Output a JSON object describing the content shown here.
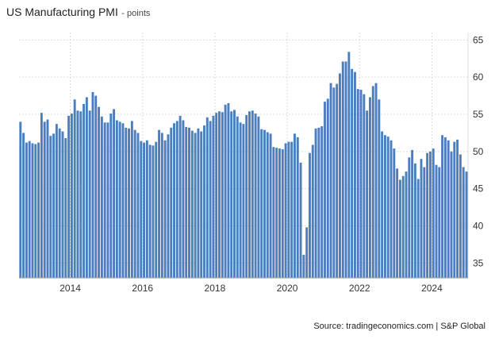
{
  "header": {
    "title": "US Manufacturing PMI",
    "unit": "- points"
  },
  "footer": {
    "source": "Source: tradingeconomics.com | S&P Global"
  },
  "colors": {
    "bar": "#4a7ebf",
    "grid": "#dcdcdc",
    "axis": "#999999"
  },
  "chart_data": {
    "type": "bar",
    "title": "US Manufacturing PMI",
    "subtitle": "- points",
    "xlabel": "",
    "ylabel": "",
    "ylim": [
      33,
      66
    ],
    "yticks": [
      35,
      40,
      45,
      50,
      55,
      60,
      65
    ],
    "x_tick_labels": [
      "2014",
      "2016",
      "2018",
      "2020",
      "2022",
      "2024"
    ],
    "x_ticks_month_index": [
      17,
      41,
      65,
      89,
      113,
      137
    ],
    "start": "2012-07",
    "end": "2024-09",
    "grid": true,
    "y_axis_side": "right",
    "values": [
      54,
      52.5,
      51.2,
      51.4,
      51.1,
      51,
      51.2,
      55.2,
      54,
      54.3,
      52.1,
      52.4,
      53.7,
      53.1,
      52.7,
      51.8,
      54.8,
      55.1,
      57,
      55.5,
      55.4,
      56.4,
      57.3,
      55.5,
      58,
      57.5,
      56,
      54.7,
      53.9,
      53.9,
      55.1,
      55.7,
      54.2,
      54,
      53.8,
      53.2,
      53.1,
      54.1,
      52.9,
      52.5,
      51.4,
      51.2,
      51.5,
      50.9,
      50.8,
      51.3,
      52.9,
      52.5,
      51.5,
      52.3,
      53.2,
      53.8,
      54.1,
      54.8,
      54.2,
      53.3,
      53.2,
      52.8,
      52.5,
      53.1,
      52.7,
      53.5,
      54.6,
      54.1,
      54.8,
      55.2,
      55.4,
      55.3,
      56.3,
      56.5,
      55.4,
      55.6,
      54.7,
      53.9,
      53.7,
      54.9,
      55.4,
      55.5,
      55.1,
      54.7,
      53,
      52.9,
      52.6,
      52.4,
      50.6,
      50.5,
      50.4,
      50.3,
      51.1,
      51.3,
      51.3,
      52.4,
      51.9,
      48.5,
      36.1,
      39.8,
      49.8,
      50.9,
      53.1,
      53.2,
      53.4,
      56.7,
      57.1,
      59.2,
      58.6,
      59.1,
      60.5,
      62.1,
      62.1,
      63.4,
      61.1,
      60.7,
      58.4,
      58.3,
      57.7,
      55.5,
      57.3,
      58.8,
      59.2,
      57,
      52.7,
      52.2,
      52,
      51.5,
      50.4,
      47.7,
      46.2,
      46.7,
      47.3,
      49.2,
      50.2,
      48.4,
      46.3,
      49,
      47.9,
      49.8,
      50,
      50.4,
      48.2,
      47.9,
      52.2,
      51.9,
      51.5,
      50,
      51.3,
      51.6,
      49.6,
      47.9,
      47.3
    ]
  }
}
